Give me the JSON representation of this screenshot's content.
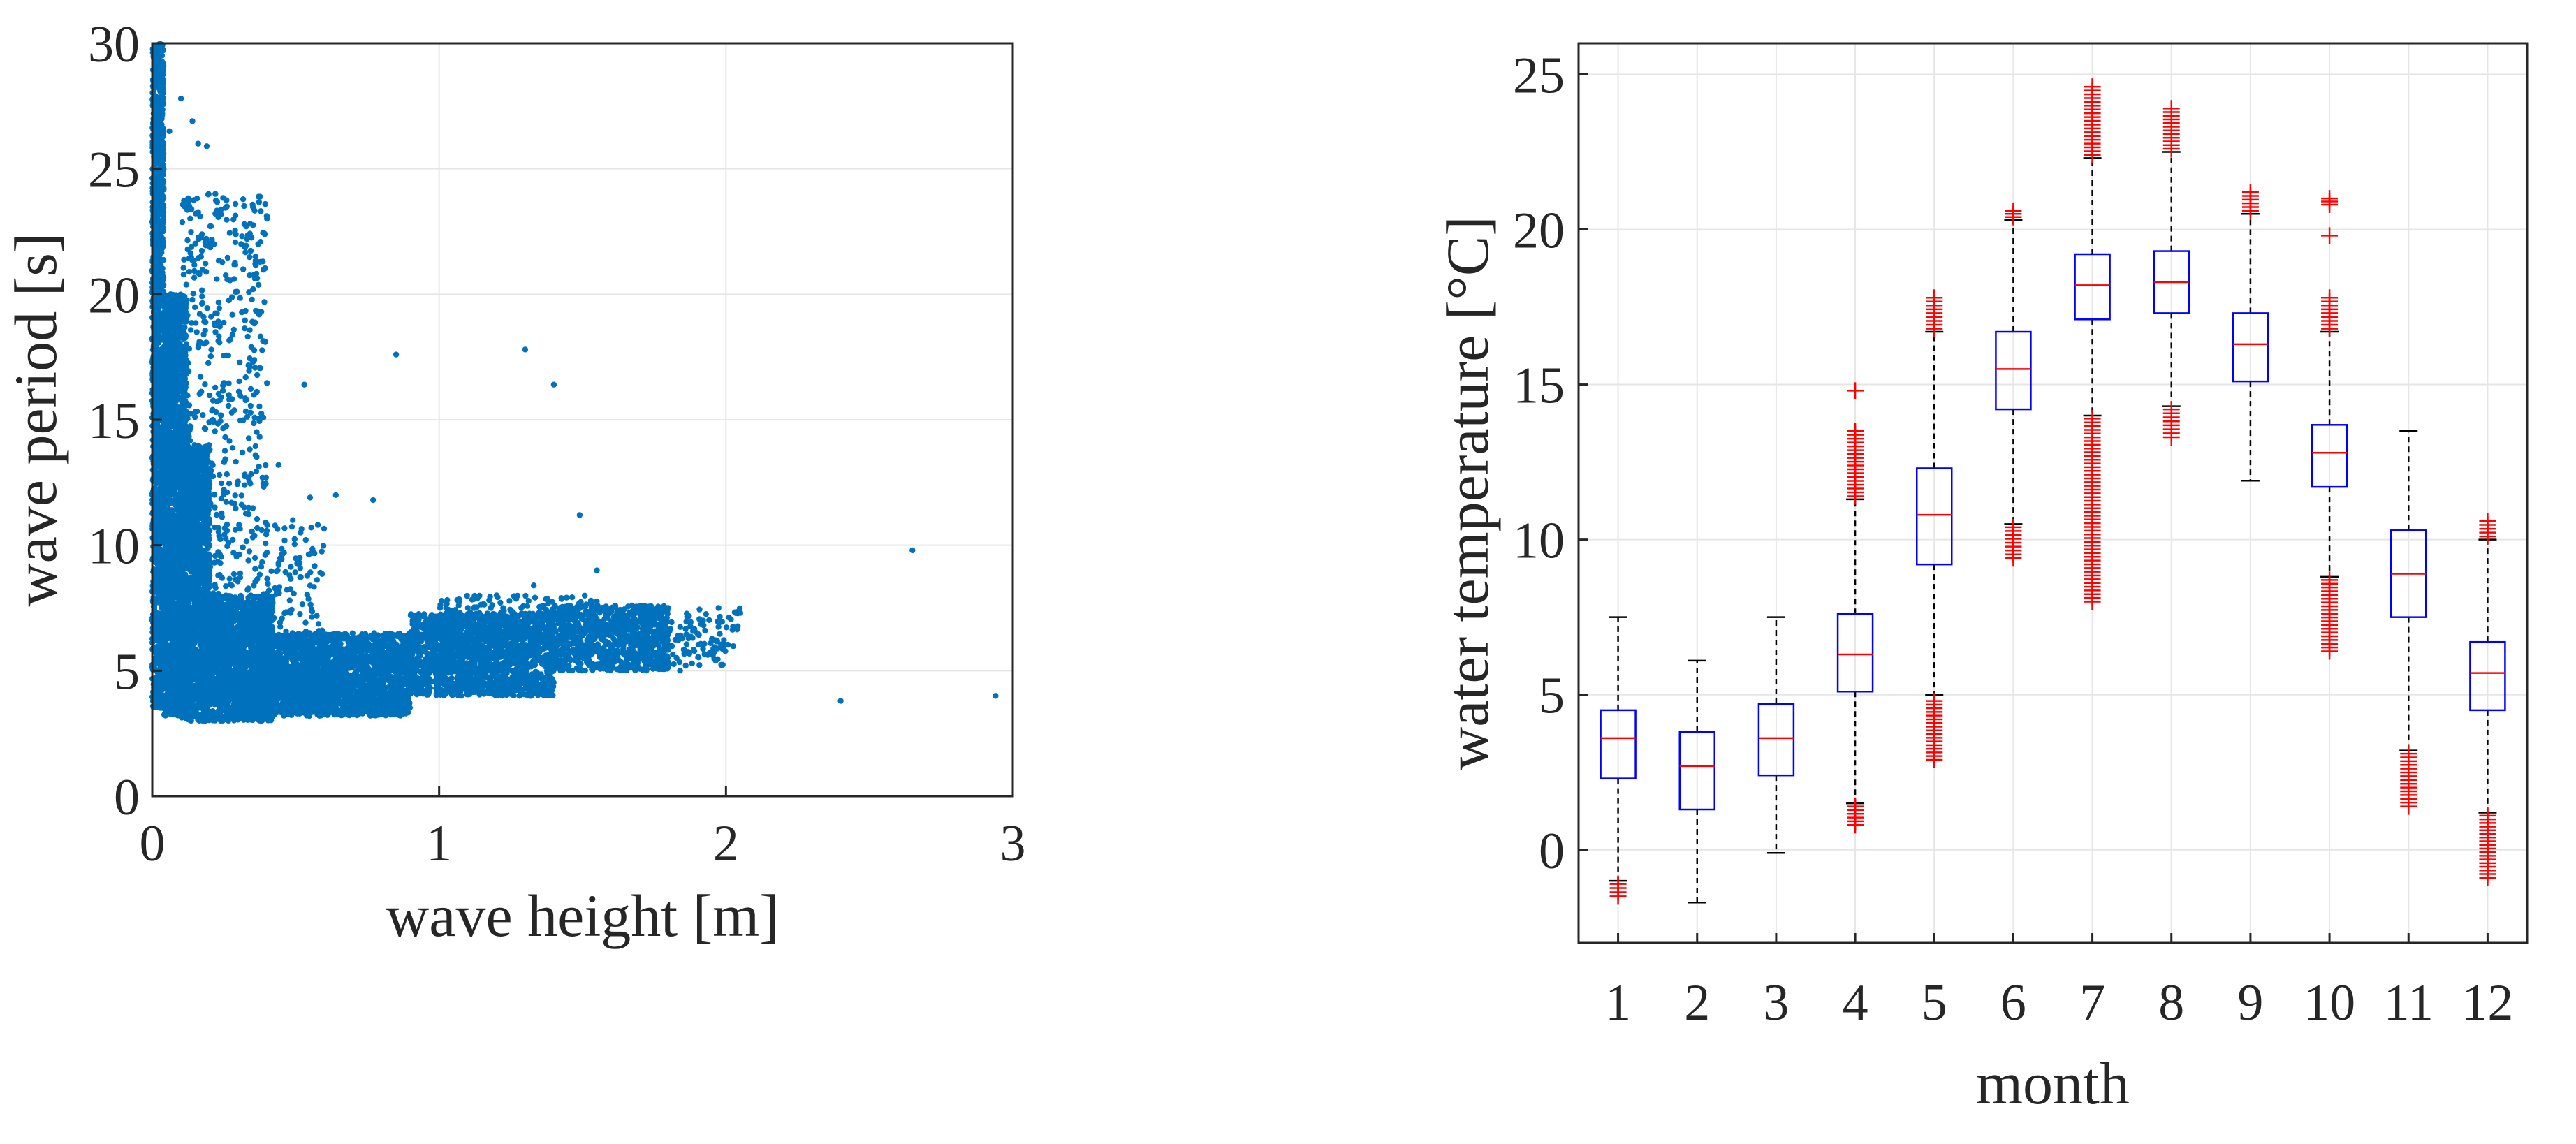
{
  "colors": {
    "scatter": "#0072BD",
    "box": "#0000FF",
    "median": "#FF0000",
    "outlier": "#FF0000",
    "whisker": "#000000",
    "grid": "#E6E6E6",
    "axis": "#262626"
  },
  "chart_data": [
    {
      "type": "scatter",
      "xlabel": "wave height [m]",
      "ylabel": "wave period [s]",
      "xlim": [
        0,
        3
      ],
      "ylim": [
        0,
        30
      ],
      "xticks": [
        0,
        1,
        2,
        3
      ],
      "yticks": [
        0,
        5,
        10,
        15,
        20,
        25,
        30
      ],
      "grid": true,
      "legend": "none",
      "series_color": "#0072BD",
      "points": [
        [
          0.02,
          29.5
        ],
        [
          0.03,
          27.0
        ],
        [
          0.06,
          26.5
        ],
        [
          0.1,
          27.8
        ],
        [
          0.14,
          26.9
        ],
        [
          0.16,
          26.0
        ],
        [
          0.19,
          25.9
        ],
        [
          0.22,
          24.0
        ],
        [
          0.26,
          23.5
        ],
        [
          0.29,
          23.6
        ],
        [
          0.31,
          22.0
        ],
        [
          0.36,
          21.5
        ],
        [
          0.38,
          19.3
        ],
        [
          0.44,
          13.2
        ],
        [
          0.53,
          16.4
        ],
        [
          0.55,
          11.9
        ],
        [
          0.64,
          12.0
        ],
        [
          0.77,
          11.8
        ],
        [
          0.85,
          17.6
        ],
        [
          0.49,
          11.0
        ],
        [
          1.3,
          17.8
        ],
        [
          1.4,
          16.4
        ],
        [
          1.49,
          11.2
        ],
        [
          1.33,
          8.4
        ],
        [
          1.55,
          9.0
        ],
        [
          1.84,
          5.0
        ],
        [
          1.92,
          7.0
        ],
        [
          2.05,
          7.3
        ],
        [
          2.4,
          3.8
        ],
        [
          2.65,
          9.8
        ],
        [
          2.94,
          4.0
        ]
      ],
      "dense_regions": [
        {
          "x": [
            0.0,
            0.04
          ],
          "y": [
            3.5,
            30.0
          ],
          "n": 1600
        },
        {
          "x": [
            0.04,
            0.12
          ],
          "y": [
            3.2,
            20.0
          ],
          "n": 2200
        },
        {
          "x": [
            0.1,
            0.2
          ],
          "y": [
            3.0,
            14.0
          ],
          "n": 1500
        },
        {
          "x": [
            0.18,
            0.42
          ],
          "y": [
            3.0,
            8.0
          ],
          "n": 1800
        },
        {
          "x": [
            0.4,
            0.9
          ],
          "y": [
            3.2,
            6.5
          ],
          "n": 2200
        },
        {
          "x": [
            0.9,
            1.4
          ],
          "y": [
            4.0,
            7.3
          ],
          "n": 1800
        },
        {
          "x": [
            1.4,
            1.8
          ],
          "y": [
            5.0,
            7.6
          ],
          "n": 900
        }
      ],
      "sparse_regions": [
        {
          "x": [
            0.1,
            0.4
          ],
          "y": [
            8.0,
            24.0
          ],
          "n": 520
        },
        {
          "x": [
            0.35,
            0.6
          ],
          "y": [
            6.0,
            11.0
          ],
          "n": 120
        },
        {
          "x": [
            1.0,
            1.55
          ],
          "y": [
            6.8,
            8.0
          ],
          "n": 140
        },
        {
          "x": [
            1.75,
            2.05
          ],
          "y": [
            5.2,
            7.5
          ],
          "n": 120
        }
      ]
    },
    {
      "type": "box",
      "xlabel": "month",
      "ylabel": "water temperature [°C]",
      "categories": [
        "1",
        "2",
        "3",
        "4",
        "5",
        "6",
        "7",
        "8",
        "9",
        "10",
        "11",
        "12"
      ],
      "xlim": [
        0.5,
        12.5
      ],
      "ylim": [
        -3,
        26
      ],
      "yticks": [
        0,
        5,
        10,
        15,
        20,
        25
      ],
      "grid": true,
      "legend": "none",
      "boxes": [
        {
          "month": "1",
          "whisker_low": -1.0,
          "q1": 2.3,
          "median": 3.6,
          "q3": 4.5,
          "whisker_high": 7.5,
          "outliers": [
            [
              -1.5,
              -1.1
            ]
          ]
        },
        {
          "month": "2",
          "whisker_low": -1.7,
          "q1": 1.3,
          "median": 2.7,
          "q3": 3.8,
          "whisker_high": 6.1,
          "outliers": []
        },
        {
          "month": "3",
          "whisker_low": -0.1,
          "q1": 2.4,
          "median": 3.6,
          "q3": 4.7,
          "whisker_high": 7.5,
          "outliers": []
        },
        {
          "month": "4",
          "whisker_low": 1.5,
          "q1": 5.1,
          "median": 6.3,
          "q3": 7.6,
          "whisker_high": 11.3,
          "outliers": [
            [
              0.8,
              1.4
            ],
            [
              11.4,
              13.5
            ],
            [
              14.8,
              14.8
            ]
          ]
        },
        {
          "month": "5",
          "whisker_low": 5.0,
          "q1": 9.2,
          "median": 10.8,
          "q3": 12.3,
          "whisker_high": 16.7,
          "outliers": [
            [
              2.9,
              4.8
            ],
            [
              16.8,
              17.8
            ]
          ]
        },
        {
          "month": "6",
          "whisker_low": 10.5,
          "q1": 14.2,
          "median": 15.5,
          "q3": 16.7,
          "whisker_high": 20.3,
          "outliers": [
            [
              9.4,
              10.4
            ],
            [
              20.4,
              20.6
            ]
          ]
        },
        {
          "month": "7",
          "whisker_low": 14.0,
          "q1": 17.1,
          "median": 18.2,
          "q3": 19.2,
          "whisker_high": 22.3,
          "outliers": [
            [
              8.0,
              13.9
            ],
            [
              22.4,
              24.6
            ]
          ]
        },
        {
          "month": "8",
          "whisker_low": 14.3,
          "q1": 17.3,
          "median": 18.3,
          "q3": 19.3,
          "whisker_high": 22.5,
          "outliers": [
            [
              13.3,
              14.2
            ],
            [
              22.6,
              23.9
            ]
          ]
        },
        {
          "month": "9",
          "whisker_low": 11.9,
          "q1": 15.1,
          "median": 16.3,
          "q3": 17.3,
          "whisker_high": 20.5,
          "outliers": [
            [
              20.6,
              21.2
            ]
          ]
        },
        {
          "month": "10",
          "whisker_low": 8.8,
          "q1": 11.7,
          "median": 12.8,
          "q3": 13.7,
          "whisker_high": 16.7,
          "outliers": [
            [
              6.4,
              8.7
            ],
            [
              16.8,
              17.8
            ],
            [
              19.8,
              19.8
            ],
            [
              20.8,
              21.0
            ]
          ]
        },
        {
          "month": "11",
          "whisker_low": 3.2,
          "q1": 7.5,
          "median": 8.9,
          "q3": 10.3,
          "whisker_high": 13.5,
          "outliers": [
            [
              1.4,
              3.1
            ]
          ]
        },
        {
          "month": "12",
          "whisker_low": 1.2,
          "q1": 4.5,
          "median": 5.7,
          "q3": 6.7,
          "whisker_high": 10.0,
          "outliers": [
            [
              -0.9,
              1.1
            ],
            [
              10.1,
              10.6
            ]
          ]
        }
      ]
    }
  ]
}
